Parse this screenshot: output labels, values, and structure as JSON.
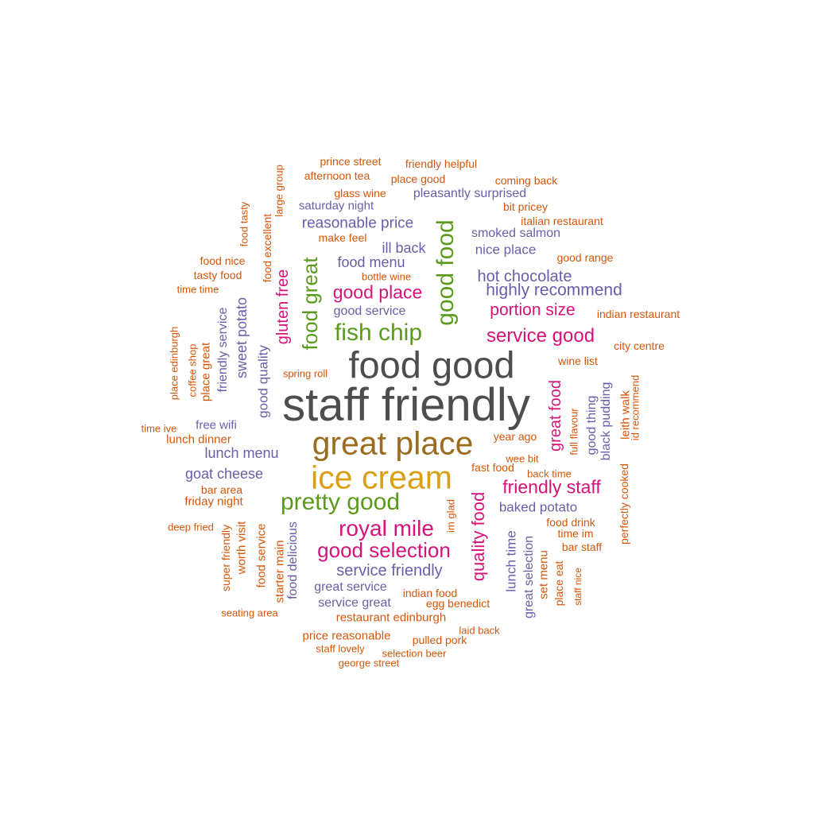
{
  "colors": {
    "dark": "#4d4d4d",
    "brown": "#9b6b1e",
    "gold": "#d9a015",
    "green": "#5a9a1c",
    "magenta": "#d6137a",
    "purple": "#6a5ea8",
    "orange": "#d4560a"
  },
  "words": [
    {
      "text": "staff friendly",
      "color": "dark"
    },
    {
      "text": "food good",
      "color": "dark"
    },
    {
      "text": "great place",
      "color": "brown"
    },
    {
      "text": "ice cream",
      "color": "gold"
    },
    {
      "text": "pretty good",
      "color": "green"
    },
    {
      "text": "fish chip",
      "color": "green"
    },
    {
      "text": "good food",
      "color": "green"
    },
    {
      "text": "food great",
      "color": "green"
    },
    {
      "text": "gluten free",
      "color": "magenta"
    },
    {
      "text": "royal mile",
      "color": "magenta"
    },
    {
      "text": "good selection",
      "color": "magenta"
    },
    {
      "text": "friendly staff",
      "color": "magenta"
    },
    {
      "text": "service good",
      "color": "magenta"
    },
    {
      "text": "good place",
      "color": "magenta"
    },
    {
      "text": "portion size",
      "color": "magenta"
    },
    {
      "text": "quality food",
      "color": "magenta"
    },
    {
      "text": "great food",
      "color": "magenta"
    },
    {
      "text": "highly recommend",
      "color": "purple"
    },
    {
      "text": "hot chocolate",
      "color": "purple"
    },
    {
      "text": "reasonable price",
      "color": "purple"
    },
    {
      "text": "service friendly",
      "color": "purple"
    },
    {
      "text": "lunch menu",
      "color": "purple"
    },
    {
      "text": "goat cheese",
      "color": "purple"
    },
    {
      "text": "food menu",
      "color": "purple"
    },
    {
      "text": "ill back",
      "color": "purple"
    },
    {
      "text": "nice place",
      "color": "purple"
    },
    {
      "text": "smoked salmon",
      "color": "purple"
    },
    {
      "text": "pleasantly surprised",
      "color": "purple"
    },
    {
      "text": "saturday night",
      "color": "purple"
    },
    {
      "text": "good service",
      "color": "purple"
    },
    {
      "text": "sweet potato",
      "color": "purple"
    },
    {
      "text": "good quality",
      "color": "purple"
    },
    {
      "text": "friendly service",
      "color": "purple"
    },
    {
      "text": "free wifi",
      "color": "purple"
    },
    {
      "text": "baked potato",
      "color": "purple"
    },
    {
      "text": "lunch time",
      "color": "purple"
    },
    {
      "text": "great selection",
      "color": "purple"
    },
    {
      "text": "good thing",
      "color": "purple"
    },
    {
      "text": "black pudding",
      "color": "purple"
    },
    {
      "text": "great service",
      "color": "purple"
    },
    {
      "text": "service great",
      "color": "purple"
    },
    {
      "text": "food delicious",
      "color": "purple"
    },
    {
      "text": "prince street",
      "color": "orange"
    },
    {
      "text": "friendly helpful",
      "color": "orange"
    },
    {
      "text": "afternoon tea",
      "color": "orange"
    },
    {
      "text": "place good",
      "color": "orange"
    },
    {
      "text": "coming back",
      "color": "orange"
    },
    {
      "text": "glass wine",
      "color": "orange"
    },
    {
      "text": "bit pricey",
      "color": "orange"
    },
    {
      "text": "italian restaurant",
      "color": "orange"
    },
    {
      "text": "make feel",
      "color": "orange"
    },
    {
      "text": "good range",
      "color": "orange"
    },
    {
      "text": "bottle wine",
      "color": "orange"
    },
    {
      "text": "food nice",
      "color": "orange"
    },
    {
      "text": "tasty food",
      "color": "orange"
    },
    {
      "text": "time time",
      "color": "orange"
    },
    {
      "text": "indian restaurant",
      "color": "orange"
    },
    {
      "text": "city centre",
      "color": "orange"
    },
    {
      "text": "wine list",
      "color": "orange"
    },
    {
      "text": "spring roll",
      "color": "orange"
    },
    {
      "text": "year ago",
      "color": "orange"
    },
    {
      "text": "wee bit",
      "color": "orange"
    },
    {
      "text": "fast food",
      "color": "orange"
    },
    {
      "text": "back time",
      "color": "orange"
    },
    {
      "text": "time ive",
      "color": "orange"
    },
    {
      "text": "lunch dinner",
      "color": "orange"
    },
    {
      "text": "bar area",
      "color": "orange"
    },
    {
      "text": "friday night",
      "color": "orange"
    },
    {
      "text": "deep fried",
      "color": "orange"
    },
    {
      "text": "food drink",
      "color": "orange"
    },
    {
      "text": "time im",
      "color": "orange"
    },
    {
      "text": "bar staff",
      "color": "orange"
    },
    {
      "text": "seating area",
      "color": "orange"
    },
    {
      "text": "indian food",
      "color": "orange"
    },
    {
      "text": "egg benedict",
      "color": "orange"
    },
    {
      "text": "restaurant edinburgh",
      "color": "orange"
    },
    {
      "text": "laid back",
      "color": "orange"
    },
    {
      "text": "price reasonable",
      "color": "orange"
    },
    {
      "text": "pulled pork",
      "color": "orange"
    },
    {
      "text": "staff lovely",
      "color": "orange"
    },
    {
      "text": "selection beer",
      "color": "orange"
    },
    {
      "text": "george street",
      "color": "orange"
    },
    {
      "text": "large group",
      "color": "orange"
    },
    {
      "text": "food tasty",
      "color": "orange"
    },
    {
      "text": "food excellent",
      "color": "orange"
    },
    {
      "text": "place edinburgh",
      "color": "orange"
    },
    {
      "text": "coffee shop",
      "color": "orange"
    },
    {
      "text": "place great",
      "color": "orange"
    },
    {
      "text": "super friendly",
      "color": "orange"
    },
    {
      "text": "worth visit",
      "color": "orange"
    },
    {
      "text": "food service",
      "color": "orange"
    },
    {
      "text": "starter main",
      "color": "orange"
    },
    {
      "text": "im glad",
      "color": "orange"
    },
    {
      "text": "full flavour",
      "color": "orange"
    },
    {
      "text": "leith walk",
      "color": "orange"
    },
    {
      "text": "id recommend",
      "color": "orange"
    },
    {
      "text": "perfectly cooked",
      "color": "orange"
    },
    {
      "text": "set menu",
      "color": "orange"
    },
    {
      "text": "place eat",
      "color": "orange"
    },
    {
      "text": "staff nice",
      "color": "orange"
    }
  ]
}
